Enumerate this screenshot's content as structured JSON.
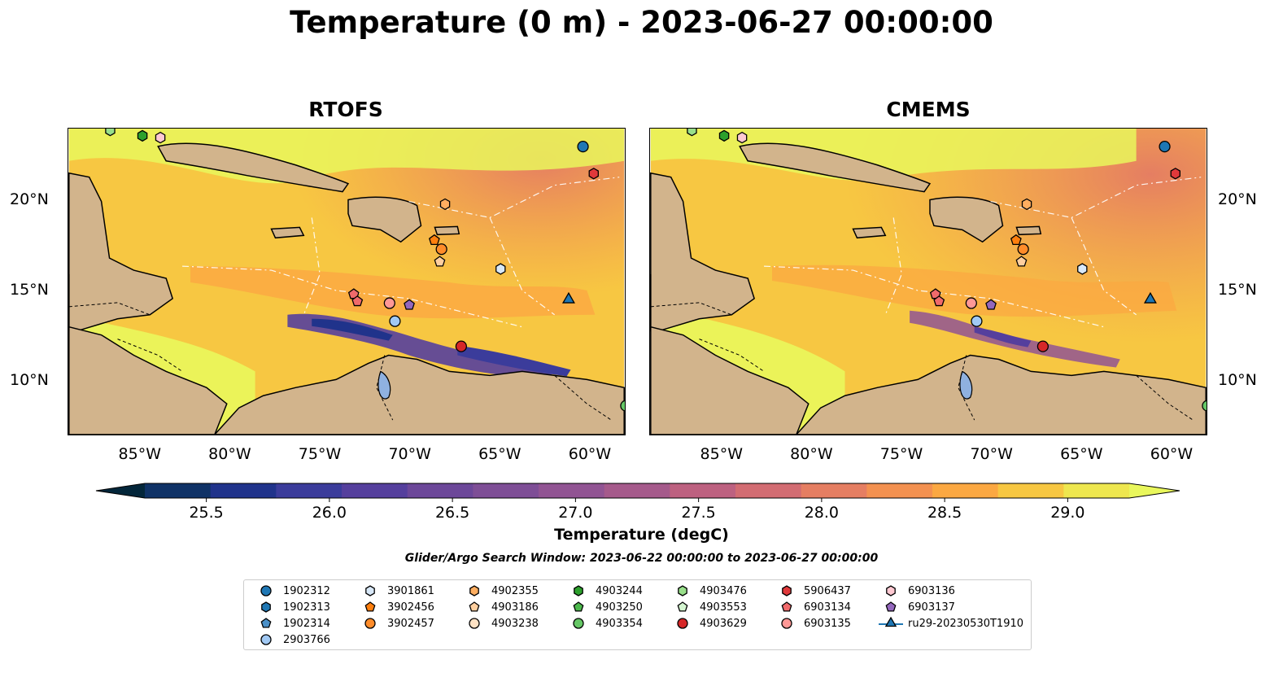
{
  "title": "Temperature (0 m) - 2023-06-27 00:00:00",
  "panels": [
    {
      "title": "RTOFS"
    },
    {
      "title": "CMEMS"
    }
  ],
  "axes": {
    "lon_ticks": [
      "85°W",
      "80°W",
      "75°W",
      "70°W",
      "65°W",
      "60°W"
    ],
    "lat_ticks": [
      "20°N",
      "15°N",
      "10°N"
    ],
    "lon_range": [
      -89,
      -58
    ],
    "lat_range": [
      7,
      24
    ]
  },
  "colorbar": {
    "label": "Temperature (degC)",
    "ticks": [
      "25.5",
      "26.0",
      "26.5",
      "27.0",
      "27.5",
      "28.0",
      "28.5",
      "29.0"
    ],
    "range": [
      25.25,
      29.25
    ],
    "extend": "both",
    "colors": [
      "#03263a",
      "#0f3266",
      "#20338b",
      "#3b3c9b",
      "#553f9d",
      "#6c4799",
      "#7e4e96",
      "#915493",
      "#a55a8b",
      "#bd6180",
      "#d26c72",
      "#e57e62",
      "#f39150",
      "#fba842",
      "#f7c742",
      "#eee74f",
      "#e9f75c"
    ]
  },
  "search_window": "Glider/Argo Search Window: 2023-06-22 00:00:00 to 2023-06-27 00:00:00",
  "colors": {
    "land": "#d2b48c",
    "lake": "#8fb1e0"
  },
  "legend": [
    {
      "label": "1902312",
      "marker": "circle",
      "color": "#1f77b4"
    },
    {
      "label": "1902313",
      "marker": "hexagon",
      "color": "#1f77b4"
    },
    {
      "label": "1902314",
      "marker": "pentagon",
      "color": "#4a90c8"
    },
    {
      "label": "2903766",
      "marker": "circle",
      "color": "#a1c9f4"
    },
    {
      "label": "3901861",
      "marker": "hexagon",
      "color": "#d8e8f8"
    },
    {
      "label": "3902456",
      "marker": "pentagon",
      "color": "#ff7f0e"
    },
    {
      "label": "3902457",
      "marker": "circle",
      "color": "#ff8c2a"
    },
    {
      "label": "4902355",
      "marker": "hexagon",
      "color": "#ffae60"
    },
    {
      "label": "4903186",
      "marker": "pentagon",
      "color": "#ffcf9f"
    },
    {
      "label": "4903238",
      "marker": "circle",
      "color": "#ffe2c4"
    },
    {
      "label": "4903244",
      "marker": "hexagon",
      "color": "#2ca02c"
    },
    {
      "label": "4903250",
      "marker": "pentagon",
      "color": "#4cb84c"
    },
    {
      "label": "4903354",
      "marker": "circle",
      "color": "#66c766"
    },
    {
      "label": "4903476",
      "marker": "hexagon",
      "color": "#98df8a"
    },
    {
      "label": "4903553",
      "marker": "pentagon",
      "color": "#d4f5d0"
    },
    {
      "label": "4903629",
      "marker": "circle",
      "color": "#d62728"
    },
    {
      "label": "5906437",
      "marker": "hexagon",
      "color": "#e0393b"
    },
    {
      "label": "6903134",
      "marker": "pentagon",
      "color": "#f06a6b"
    },
    {
      "label": "6903135",
      "marker": "circle",
      "color": "#ff9896"
    },
    {
      "label": "6903136",
      "marker": "hexagon",
      "color": "#ffc9d2"
    },
    {
      "label": "6903137",
      "marker": "pentagon",
      "color": "#9467bd"
    },
    {
      "label": "ru29-20230530T1910",
      "marker": "triangle",
      "color": "#1f77b4"
    }
  ],
  "platforms": [
    {
      "id": "1902312",
      "lon": -60.3,
      "lat": 23.0
    },
    {
      "id": "5906437",
      "lon": -59.7,
      "lat": 21.5
    },
    {
      "id": "4903244",
      "lon": -84.9,
      "lat": 23.6
    },
    {
      "id": "6903136",
      "lon": -83.9,
      "lat": 23.5
    },
    {
      "id": "4903476",
      "lon": -86.7,
      "lat": 23.9
    },
    {
      "id": "4902355",
      "lon": -68.0,
      "lat": 19.8
    },
    {
      "id": "3902456",
      "lon": -68.6,
      "lat": 17.8
    },
    {
      "id": "3902457",
      "lon": -68.2,
      "lat": 17.3
    },
    {
      "id": "4903186",
      "lon": -68.3,
      "lat": 16.6
    },
    {
      "id": "3901861",
      "lon": -64.9,
      "lat": 16.2
    },
    {
      "id": "6903134",
      "lon": -73.1,
      "lat": 14.8
    },
    {
      "id": "6903134b",
      "lon": -72.9,
      "lat": 14.4
    },
    {
      "id": "6903135",
      "lon": -71.1,
      "lat": 14.3
    },
    {
      "id": "6903137",
      "lon": -70.0,
      "lat": 14.2
    },
    {
      "id": "2903766",
      "lon": -70.8,
      "lat": 13.3
    },
    {
      "id": "4903629",
      "lon": -67.1,
      "lat": 11.9
    },
    {
      "id": "ru29-20230530T1910",
      "lon": -61.1,
      "lat": 14.5
    },
    {
      "id": "4903354",
      "lon": -57.9,
      "lat": 8.6
    }
  ]
}
